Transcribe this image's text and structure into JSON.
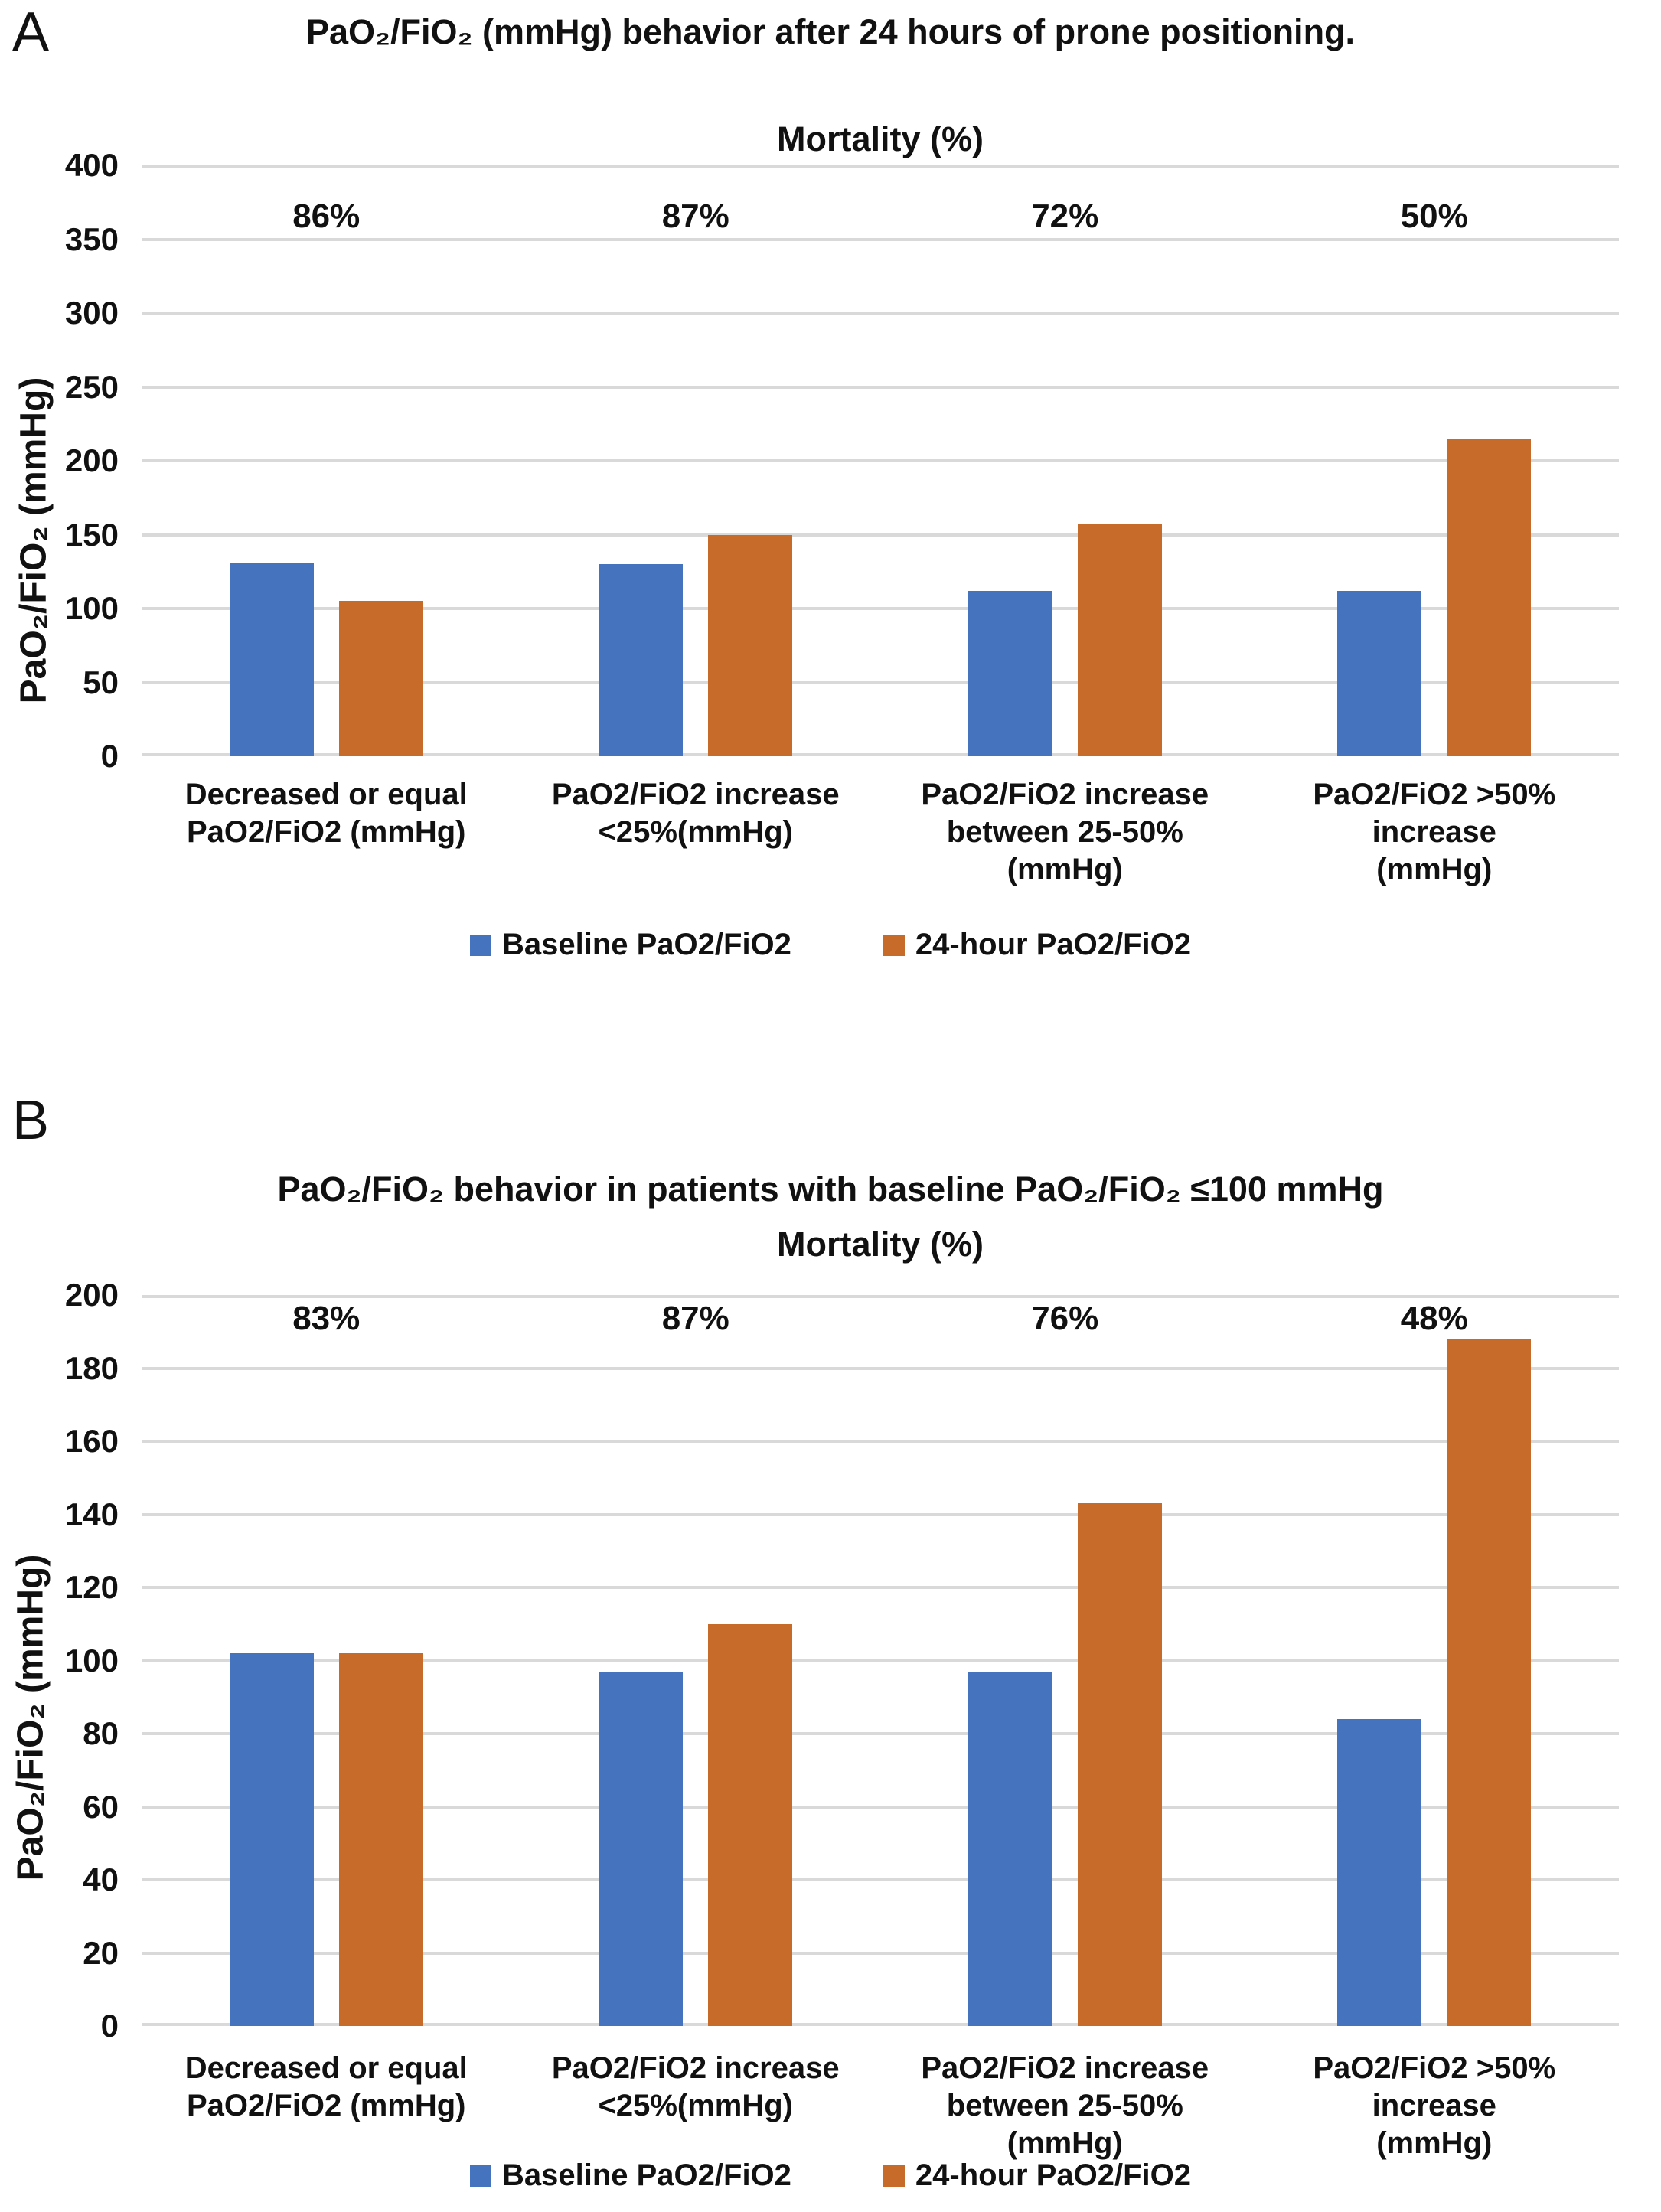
{
  "page": {
    "background": "#FFFFFF"
  },
  "colors": {
    "baseline": "#4673BE",
    "after24h": "#C76B2A",
    "gridline": "#D9D9D9",
    "text": "#111111"
  },
  "legend": {
    "items": [
      {
        "label": "Baseline PaO2/FiO2",
        "color_key": "baseline"
      },
      {
        "label": "24-hour PaO2/FiO2",
        "color_key": "after24h"
      }
    ]
  },
  "chart_data": [
    {
      "panel_label": "A",
      "type": "bar",
      "title": "PaO₂/FiO₂ (mmHg) behavior  after 24 hours of prone positioning.",
      "subtitle": "Mortality (%)",
      "ylabel": "PaO₂/FiO₂ (mmHg)",
      "xlabel": "",
      "ylim": [
        0,
        400
      ],
      "yticks": [
        0,
        50,
        100,
        150,
        200,
        250,
        300,
        350,
        400
      ],
      "grid": true,
      "legend_position": "bottom",
      "categories": [
        [
          "Decreased or equal",
          "PaO2/FiO2 (mmHg)"
        ],
        [
          "PaO2/FiO2 increase",
          "<25%(mmHg)"
        ],
        [
          "PaO2/FiO2 increase",
          "between 25-50% (mmHg)"
        ],
        [
          "PaO2/FiO2 >50% increase",
          "(mmHg)"
        ]
      ],
      "mortality_labels": [
        "86%",
        "87%",
        "72%",
        "50%"
      ],
      "series": [
        {
          "name": "Baseline PaO2/FiO2",
          "color_key": "baseline",
          "values": [
            131,
            130,
            112,
            112
          ]
        },
        {
          "name": "24-hour PaO2/FiO2",
          "color_key": "after24h",
          "values": [
            105,
            150,
            157,
            215
          ]
        }
      ]
    },
    {
      "panel_label": "B",
      "type": "bar",
      "title": "PaO₂/FiO₂ behavior in patients with baseline PaO₂/FiO₂ ≤100 mmHg",
      "subtitle": "Mortality (%)",
      "ylabel": "PaO₂/FiO₂ (mmHg)",
      "xlabel": "",
      "ylim": [
        0,
        200
      ],
      "yticks": [
        0,
        20,
        40,
        60,
        80,
        100,
        120,
        140,
        160,
        180,
        200
      ],
      "grid": true,
      "legend_position": "bottom",
      "categories": [
        [
          "Decreased or equal",
          "PaO2/FiO2 (mmHg)"
        ],
        [
          "PaO2/FiO2 increase",
          "<25%(mmHg)"
        ],
        [
          "PaO2/FiO2 increase",
          "between 25-50% (mmHg)"
        ],
        [
          "PaO2/FiO2 >50% increase",
          "(mmHg)"
        ]
      ],
      "mortality_labels": [
        "83%",
        "87%",
        "76%",
        "48%"
      ],
      "series": [
        {
          "name": "Baseline PaO2/FiO2",
          "color_key": "baseline",
          "values": [
            102,
            97,
            97,
            84
          ]
        },
        {
          "name": "24-hour PaO2/FiO2",
          "color_key": "after24h",
          "values": [
            102,
            110,
            143,
            188
          ]
        }
      ]
    }
  ]
}
